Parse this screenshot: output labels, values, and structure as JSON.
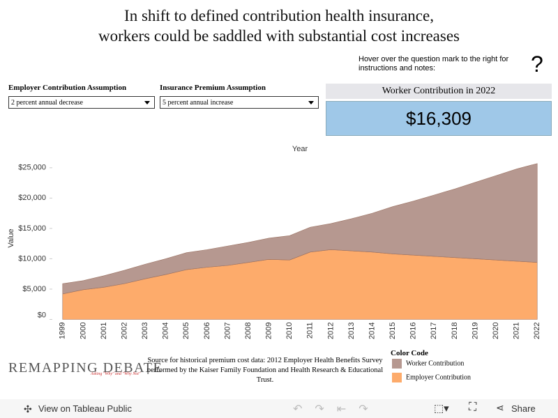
{
  "header": {
    "title_lines": [
      "In shift to defined contribution health insurance,",
      "workers could be saddled with substantial cost increases"
    ],
    "hint": "Hover over the question mark to the right for instructions and notes:",
    "help_icon": "?"
  },
  "filters": [
    {
      "label": "Employer Contribution Assumption",
      "value": "2 percent annual decrease"
    },
    {
      "label": "Insurance Premium Assumption",
      "value": "5 percent annual increase"
    }
  ],
  "kpi": {
    "label": "Worker Contribution in 2022",
    "value": "$16,309"
  },
  "chart_data": {
    "type": "area",
    "stacked": true,
    "x_axis_title": "Year",
    "y_axis_title": "Value",
    "legend_title": "Color Code",
    "categories": [
      "1999",
      "2000",
      "2001",
      "2002",
      "2003",
      "2004",
      "2005",
      "2006",
      "2007",
      "2008",
      "2009",
      "2010",
      "2011",
      "2012",
      "2013",
      "2014",
      "2015",
      "2016",
      "2017",
      "2018",
      "2019",
      "2020",
      "2021",
      "2022"
    ],
    "series": [
      {
        "name": "Employer Contribution",
        "color": "#fdab6b",
        "values": [
          4200,
          4900,
          5300,
          5900,
          6700,
          7400,
          8200,
          8600,
          8900,
          9400,
          9900,
          9800,
          11100,
          11500,
          11300,
          11100,
          10800,
          10600,
          10400,
          10200,
          10000,
          9800,
          9600,
          9400
        ]
      },
      {
        "name": "Worker Contribution",
        "color": "#b69890",
        "values": [
          1700,
          1500,
          1900,
          2200,
          2400,
          2600,
          2800,
          2900,
          3200,
          3300,
          3500,
          4000,
          4100,
          4300,
          5300,
          6400,
          7800,
          8900,
          10100,
          11300,
          12600,
          13900,
          15200,
          16300
        ]
      }
    ],
    "ylim": [
      0,
      26700
    ],
    "yticks": [
      {
        "value": 0,
        "label": "$0"
      },
      {
        "value": 5000,
        "label": "$5,000"
      },
      {
        "value": 10000,
        "label": "$10,000"
      },
      {
        "value": 15000,
        "label": "$15,000"
      },
      {
        "value": 20000,
        "label": "$20,000"
      },
      {
        "value": 25000,
        "label": "$25,000"
      }
    ]
  },
  "source": "Source for historical premium cost data: 2012 Employer Health Benefits Survey performed by the Kaiser Family Foundation and Health Research & Educational Trust.",
  "logo": {
    "name": "REMAPPING DEBATE",
    "tagline": "Asking \"Why\" and \"Why Not\""
  },
  "toolbar": {
    "view": "View on Tableau Public",
    "share": "Share"
  }
}
